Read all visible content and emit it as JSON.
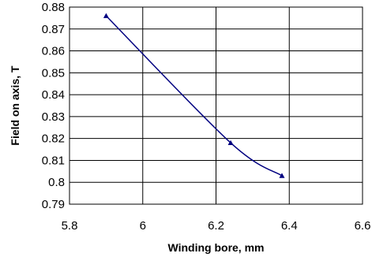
{
  "chart_data": {
    "type": "line",
    "title": "",
    "xlabel": "Winding bore, mm",
    "ylabel": "Field on axis, T",
    "xlim": [
      5.8,
      6.6
    ],
    "ylim": [
      0.79,
      0.88
    ],
    "x_ticks": [
      "5.8",
      "6",
      "6.2",
      "6.4",
      "6.6"
    ],
    "y_ticks": [
      "0.79",
      "0.8",
      "0.81",
      "0.82",
      "0.83",
      "0.84",
      "0.85",
      "0.86",
      "0.87",
      "0.88"
    ],
    "grid": true,
    "marker": "triangle",
    "line_color": "#000080",
    "series": [
      {
        "x": [
          5.9,
          6.24,
          6.38
        ],
        "y": [
          0.876,
          0.818,
          0.803
        ]
      }
    ]
  }
}
